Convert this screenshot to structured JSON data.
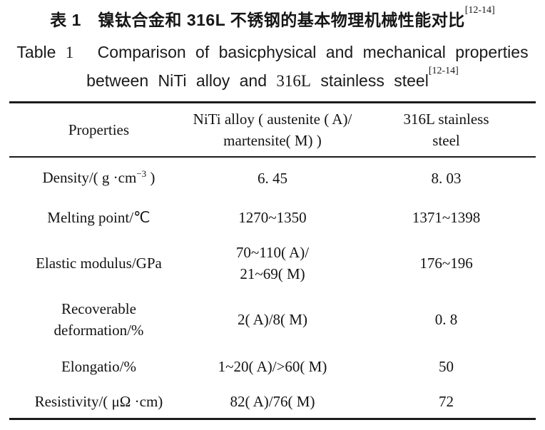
{
  "caption": {
    "chinese_text": "表 1　镍钛合金和 316L 不锈钢的基本物理机械性能对比",
    "chinese_citation": "[12-14]",
    "english_line1": {
      "word_table": "Table",
      "table_number": "1",
      "rest": "Comparison of basicphysical and mechanical properties"
    },
    "english_line2": {
      "part1": "between NiTi alloy and",
      "alloy_number": "316L",
      "part2": "stainless steel",
      "citation": "[12-14]"
    }
  },
  "table": {
    "header": {
      "properties": "Properties",
      "niti_line1": "NiTi alloy ( austenite ( A)/",
      "niti_line2": "martensite( M) )",
      "steel_line1": "316L stainless",
      "steel_line2": "steel"
    },
    "rows": {
      "density": {
        "label_prefix": "Density/( g ·cm",
        "label_sup": "−3",
        "label_suffix": " )",
        "niti": "6. 45",
        "steel": "8. 03"
      },
      "melting": {
        "label": "Melting point/℃",
        "niti": "1270~1350",
        "steel": "1371~1398"
      },
      "modulus": {
        "label": "Elastic modulus/GPa",
        "niti_line1": "70~110( A)/",
        "niti_line2": "21~69( M)",
        "steel": "176~196"
      },
      "recoverable": {
        "label_line1": "Recoverable",
        "label_line2": "deformation/%",
        "niti": "2( A)/8( M)",
        "steel": "0. 8"
      },
      "elongation": {
        "label": "Elongatio/%",
        "niti": "1~20( A)/>60( M)",
        "steel": "50"
      },
      "resistivity": {
        "label": "Resistivity/( μΩ ·cm)",
        "niti": "82( A)/76( M)",
        "steel": "72"
      }
    }
  },
  "colors": {
    "text": "#161616",
    "background": "#ffffff",
    "rule": "#1c1c1c"
  }
}
